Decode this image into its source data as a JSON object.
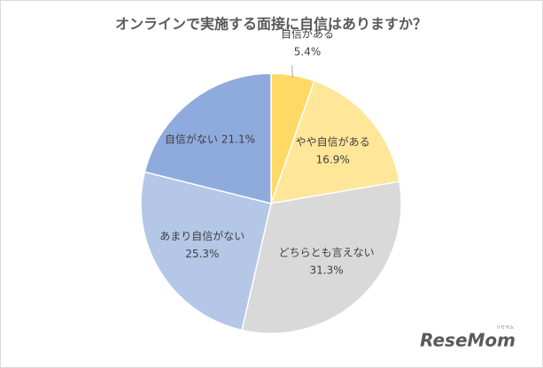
{
  "chart_data": {
    "type": "pie",
    "title": "オンラインで実施する面接に自信はありますか？",
    "categories": [
      "自信がある",
      "やや自信がある",
      "どちらとも言えない",
      "あまり自信がない",
      "自信がない"
    ],
    "values": [
      5.4,
      16.9,
      31.3,
      25.3,
      21.1
    ],
    "value_labels": [
      "5.4%",
      "16.9%",
      "31.3%",
      "25.3%",
      "21.1%"
    ],
    "colors": [
      "#ffd966",
      "#ffe699",
      "#d9d9d9",
      "#b4c7e7",
      "#8faadc"
    ],
    "watermark": "ReseMom",
    "watermark_sub": "リセマム"
  }
}
